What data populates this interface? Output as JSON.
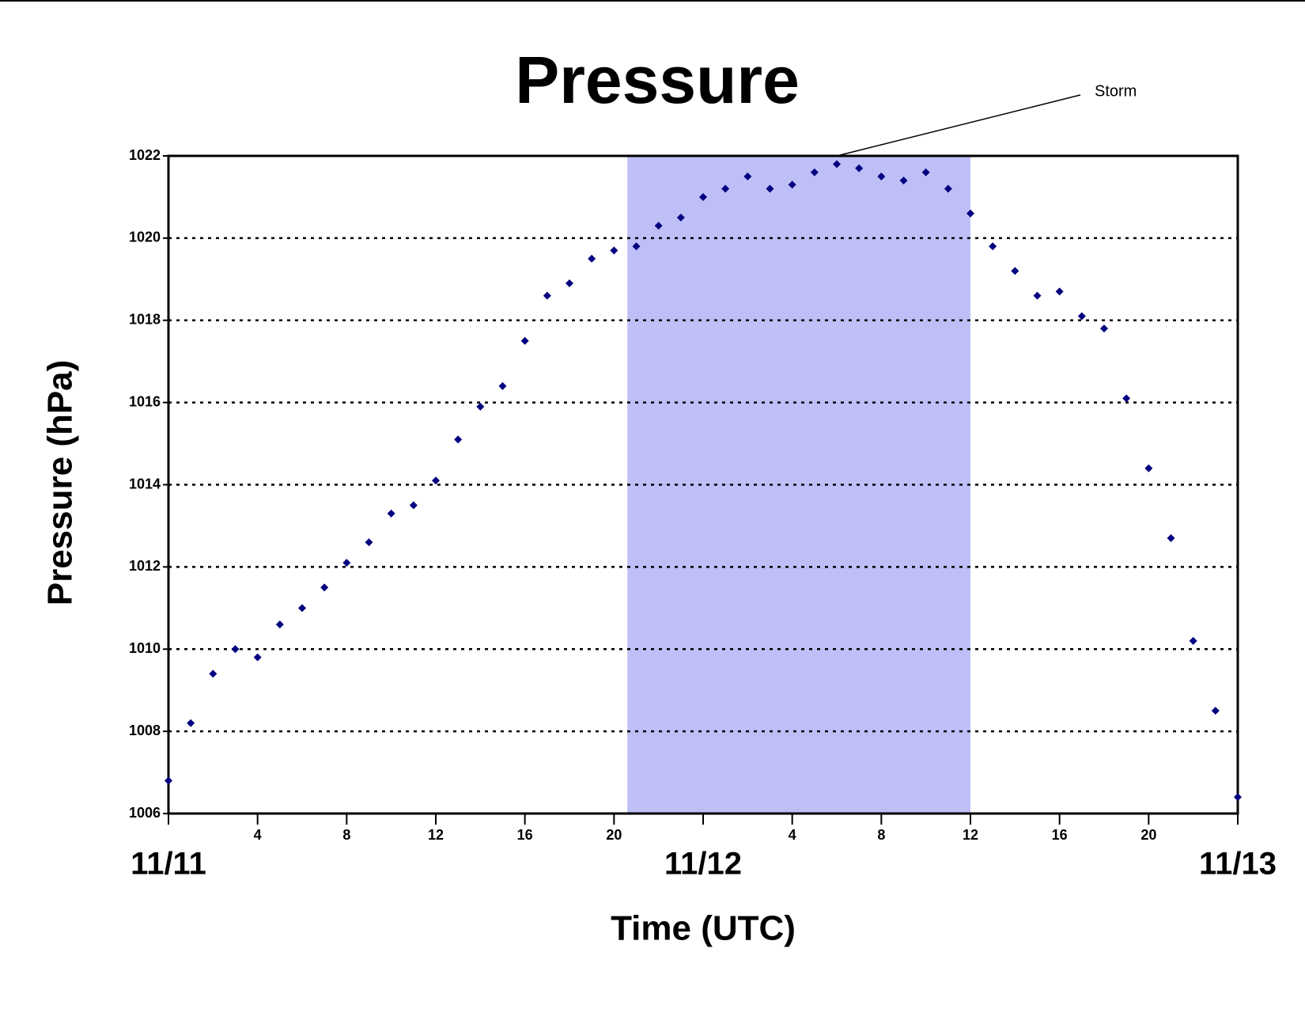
{
  "chart_data": {
    "type": "scatter",
    "title": "Pressure",
    "x_label": "Time (UTC)",
    "y_label": "Pressure (hPa)",
    "x": [
      0,
      1,
      2,
      3,
      4,
      5,
      6,
      7,
      8,
      9,
      10,
      11,
      12,
      13,
      14,
      15,
      16,
      17,
      18,
      19,
      20,
      21,
      22,
      23,
      24,
      25,
      26,
      27,
      28,
      29,
      30,
      31,
      32,
      33,
      34,
      35,
      36,
      37,
      38,
      39,
      40,
      41,
      42,
      43,
      44,
      45,
      46,
      47,
      48
    ],
    "series": [
      {
        "name": "Pressure",
        "color": "#000080",
        "values": [
          1006.8,
          1008.2,
          1009.4,
          1010.0,
          1009.8,
          1010.6,
          1011.0,
          1011.5,
          1012.1,
          1012.6,
          1013.3,
          1013.5,
          1014.1,
          1015.1,
          1015.9,
          1016.4,
          1017.5,
          1018.6,
          1018.9,
          1019.5,
          1019.7,
          1019.8,
          1020.3,
          1020.5,
          1021.0,
          1021.2,
          1021.5,
          1021.2,
          1021.3,
          1021.6,
          1021.8,
          1021.7,
          1021.5,
          1021.4,
          1021.6,
          1021.2,
          1020.6,
          1019.8,
          1019.2,
          1018.6,
          1018.7,
          1018.1,
          1017.8,
          1016.1,
          1014.4,
          1012.7,
          1010.2,
          1008.5,
          1006.4
        ]
      }
    ],
    "xlim": [
      0,
      48
    ],
    "xticks": [
      4,
      8,
      12,
      16,
      20,
      {
        "value": 28,
        "label": "4"
      },
      {
        "value": 32,
        "label": "8"
      },
      {
        "value": 36,
        "label": "12"
      },
      {
        "value": 40,
        "label": "16"
      },
      {
        "value": 44,
        "label": "20"
      }
    ],
    "xticks_major": [
      {
        "value": 0,
        "label": "11/11"
      },
      {
        "value": 24,
        "label": "11/12"
      },
      {
        "value": 48,
        "label": "11/13"
      }
    ],
    "ylim": [
      1006,
      1022
    ],
    "yticks": [
      1006,
      1008,
      1010,
      1012,
      1014,
      1016,
      1018,
      1020,
      1022
    ],
    "grid": true,
    "shaded_span": [
      20.6,
      36
    ],
    "shade_color": "#bfbff8",
    "annotation": {
      "text": "Storm",
      "x": 30,
      "y": 1022
    }
  }
}
